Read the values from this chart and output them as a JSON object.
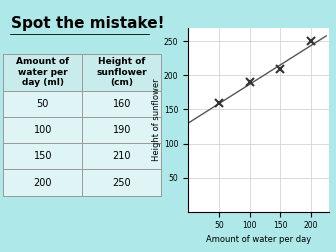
{
  "title": "Spot the mistake!",
  "bg_color": "#aee8e8",
  "table_headers": [
    "Amount of\nwater per\nday (ml)",
    "Height of\nsunflower\n(cm)"
  ],
  "table_data": [
    [
      "50",
      "160"
    ],
    [
      "100",
      "190"
    ],
    [
      "150",
      "210"
    ],
    [
      "200",
      "250"
    ]
  ],
  "x_data": [
    50,
    100,
    150,
    200
  ],
  "y_data": [
    160,
    190,
    210,
    250
  ],
  "xlabel": "Amount of water per day",
  "ylabel": "Height of sunflower",
  "xlim": [
    0,
    230
  ],
  "ylim": [
    0,
    270
  ],
  "xticks": [
    50,
    100,
    150,
    200
  ],
  "yticks": [
    50,
    100,
    150,
    200,
    250
  ],
  "grid_color": "#cccccc",
  "line_color": "#555555",
  "marker": "x",
  "marker_color": "#333333",
  "marker_size": 6,
  "best_fit_x": [
    0,
    225
  ],
  "best_fit_y": [
    130,
    258
  ],
  "header_bg": "#c8ecec",
  "cell_bg": "#dff5f5"
}
